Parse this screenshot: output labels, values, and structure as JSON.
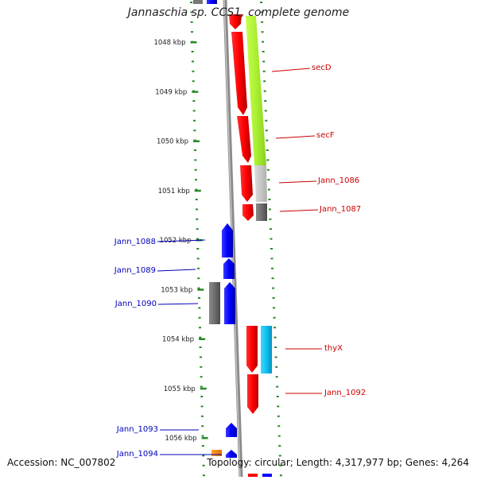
{
  "title": "Jannaschia sp. CCS1, complete genome",
  "accession": "Accession: NC_007802",
  "topology": "Topology: circular; Length: 4,317,977 bp; Genes: 4,264",
  "colors": {
    "tick": "#2a8a2a",
    "label_right": "#cc0000",
    "label_left": "#0000bb",
    "backbone": "#8a8a8a"
  },
  "scale_ticks": [
    {
      "label": "1048 kbp"
    },
    {
      "label": "1049 kbp"
    },
    {
      "label": "1050 kbp"
    },
    {
      "label": "1051 kbp"
    },
    {
      "label": "1052 kbp"
    },
    {
      "label": "1053 kbp"
    },
    {
      "label": "1054 kbp"
    },
    {
      "label": "1055 kbp"
    },
    {
      "label": "1056 kbp"
    }
  ],
  "gene_labels_right": [
    {
      "text": "secD"
    },
    {
      "text": "secF"
    },
    {
      "text": "Jann_1086"
    },
    {
      "text": "Jann_1087"
    },
    {
      "text": "thyX"
    },
    {
      "text": "Jann_1092"
    }
  ],
  "gene_labels_left": [
    {
      "text": "Jann_1088"
    },
    {
      "text": "Jann_1089"
    },
    {
      "text": "Jann_1090"
    },
    {
      "text": "Jann_1093"
    },
    {
      "text": "Jann_1094"
    }
  ]
}
